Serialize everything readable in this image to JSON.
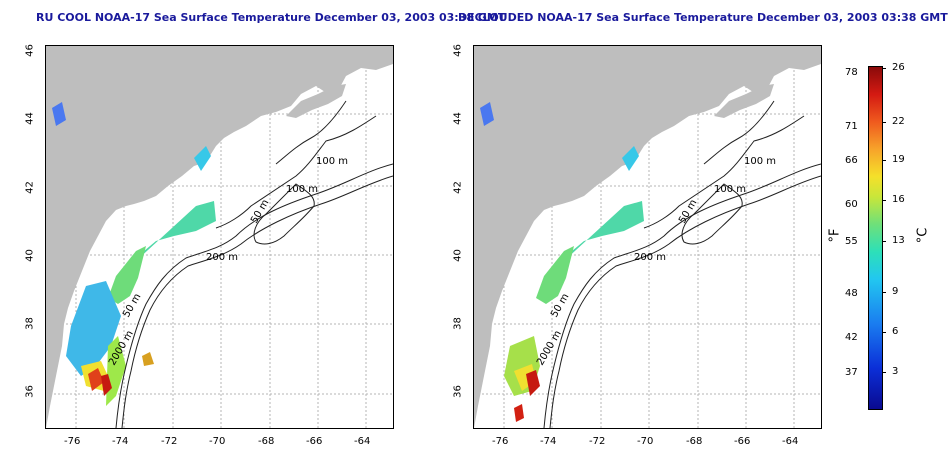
{
  "titles": {
    "left": "RU COOL NOAA-17 Sea Surface Temperature December 03, 2003 03:38 GMT",
    "right": "DECLOUDED NOAA-17 Sea Surface Temperature December 03, 2003 03:38 GMT"
  },
  "axes": {
    "x_ticks": [
      "-76",
      "-74",
      "-72",
      "-70",
      "-68",
      "-66",
      "-64"
    ],
    "y_ticks": [
      "46",
      "44",
      "42",
      "40",
      "38",
      "36"
    ]
  },
  "contour_labels": {
    "left": [
      "100 m",
      "100 m",
      "50 m",
      "200 m",
      "50 m",
      "2000 m"
    ],
    "right": [
      "100 m",
      "100 m",
      "50 m",
      "200 m",
      "50 m",
      "2000 m"
    ]
  },
  "colorbar": {
    "fahrenheit_label": "°F",
    "celsius_label": "°C",
    "fahrenheit_ticks": [
      "78",
      "71",
      "66",
      "60",
      "55",
      "48",
      "42",
      "37"
    ],
    "celsius_ticks": [
      "26",
      "22",
      "19",
      "16",
      "13",
      "9",
      "6",
      "3"
    ]
  },
  "colors": {
    "land": "#bebebe",
    "title": "#1a1a9c",
    "grid": "#b4b4b4"
  }
}
